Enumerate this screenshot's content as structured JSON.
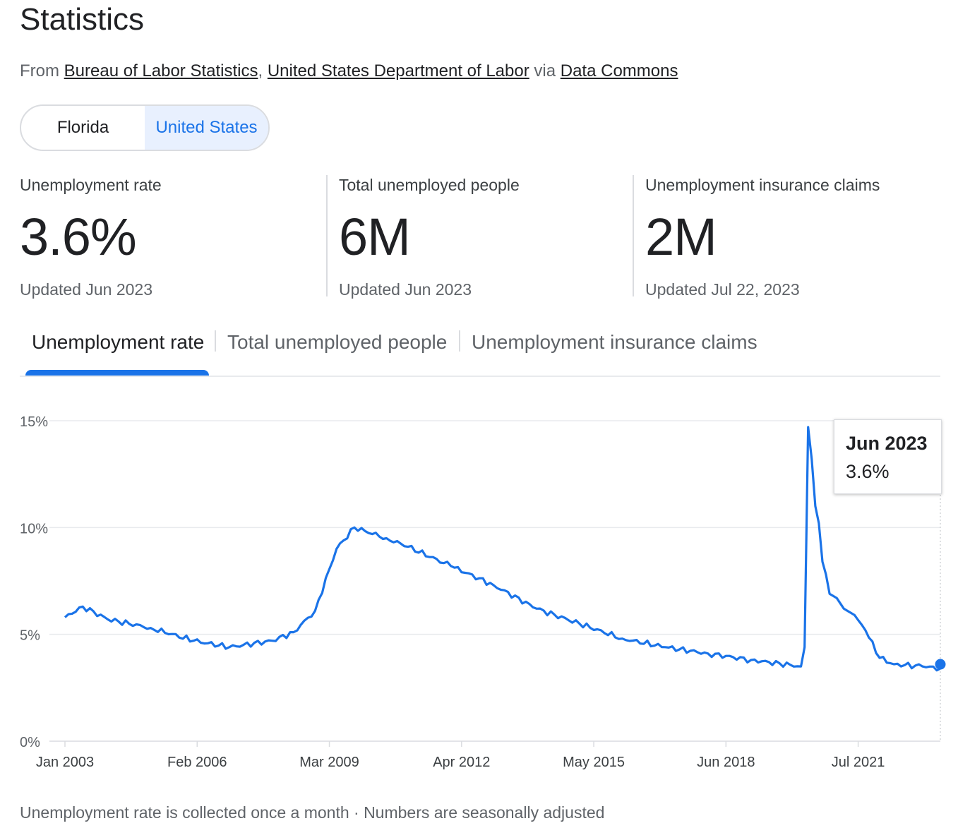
{
  "header": {
    "title": "Statistics",
    "source_prefix": "From",
    "source1": "Bureau of Labor Statistics",
    "source_sep": ",",
    "source2": "United States Department of Labor",
    "source_via": "via",
    "source3": "Data Commons"
  },
  "region_toggle": {
    "option1": "Florida",
    "option2": "United States",
    "selected": "United States"
  },
  "stats": [
    {
      "label": "Unemployment rate",
      "value": "3.6%",
      "updated": "Updated Jun 2023"
    },
    {
      "label": "Total unemployed people",
      "value": "6M",
      "updated": "Updated Jun 2023"
    },
    {
      "label": "Unemployment insurance claims",
      "value": "2M",
      "updated": "Updated Jul 22, 2023"
    }
  ],
  "tabs": [
    "Unemployment rate",
    "Total unemployed people",
    "Unemployment insurance claims"
  ],
  "active_tab": "Unemployment rate",
  "tooltip": {
    "date": "Jun 2023",
    "value": "3.6%"
  },
  "footnote": "Unemployment rate is collected once a month · Numbers are seasonally adjusted",
  "colors": {
    "accent": "#1a73e8",
    "line": "#1a73e8",
    "grid": "#e8eaed"
  },
  "chart_data": {
    "type": "line",
    "title": "",
    "xlabel": "",
    "ylabel": "",
    "x_start": "Jan 2003",
    "x_end": "Jun 2023",
    "ylim": [
      0,
      15
    ],
    "y_ticks": [
      0,
      5,
      10,
      15
    ],
    "y_tick_labels": [
      "0%",
      "5%",
      "10%",
      "15%"
    ],
    "x_ticks": [
      {
        "label": "Jan 2003",
        "month_index": 0
      },
      {
        "label": "Feb 2006",
        "month_index": 37
      },
      {
        "label": "Mar 2009",
        "month_index": 74
      },
      {
        "label": "Apr 2012",
        "month_index": 111
      },
      {
        "label": "May 2015",
        "month_index": 148
      },
      {
        "label": "Jun 2018",
        "month_index": 185
      },
      {
        "label": "Jul 2021",
        "month_index": 222
      }
    ],
    "series": [
      {
        "name": "Unemployment rate",
        "keypoints": [
          {
            "month_index": 0,
            "value": 5.8
          },
          {
            "month_index": 5,
            "value": 6.3
          },
          {
            "month_index": 12,
            "value": 5.7
          },
          {
            "month_index": 24,
            "value": 5.3
          },
          {
            "month_index": 36,
            "value": 4.7
          },
          {
            "month_index": 46,
            "value": 4.4
          },
          {
            "month_index": 58,
            "value": 4.7
          },
          {
            "month_index": 64,
            "value": 5.1
          },
          {
            "month_index": 70,
            "value": 6.1
          },
          {
            "month_index": 76,
            "value": 9.0
          },
          {
            "month_index": 81,
            "value": 10.0
          },
          {
            "month_index": 90,
            "value": 9.5
          },
          {
            "month_index": 96,
            "value": 9.1
          },
          {
            "month_index": 108,
            "value": 8.2
          },
          {
            "month_index": 120,
            "value": 7.3
          },
          {
            "month_index": 132,
            "value": 6.2
          },
          {
            "month_index": 144,
            "value": 5.5
          },
          {
            "month_index": 156,
            "value": 4.8
          },
          {
            "month_index": 168,
            "value": 4.4
          },
          {
            "month_index": 180,
            "value": 4.1
          },
          {
            "month_index": 192,
            "value": 3.8
          },
          {
            "month_index": 206,
            "value": 3.5
          },
          {
            "month_index": 207,
            "value": 4.4
          },
          {
            "month_index": 208,
            "value": 14.7
          },
          {
            "month_index": 209,
            "value": 13.2
          },
          {
            "month_index": 210,
            "value": 11.0
          },
          {
            "month_index": 211,
            "value": 10.2
          },
          {
            "month_index": 212,
            "value": 8.4
          },
          {
            "month_index": 213,
            "value": 7.8
          },
          {
            "month_index": 214,
            "value": 6.9
          },
          {
            "month_index": 216,
            "value": 6.7
          },
          {
            "month_index": 218,
            "value": 6.2
          },
          {
            "month_index": 221,
            "value": 5.9
          },
          {
            "month_index": 224,
            "value": 5.2
          },
          {
            "month_index": 228,
            "value": 3.9
          },
          {
            "month_index": 232,
            "value": 3.6
          },
          {
            "month_index": 240,
            "value": 3.5
          },
          {
            "month_index": 245,
            "value": 3.4
          },
          {
            "month_index": 245,
            "value": 3.6
          }
        ]
      }
    ],
    "highlight": {
      "label": "Jun 2023",
      "value": 3.6
    }
  }
}
